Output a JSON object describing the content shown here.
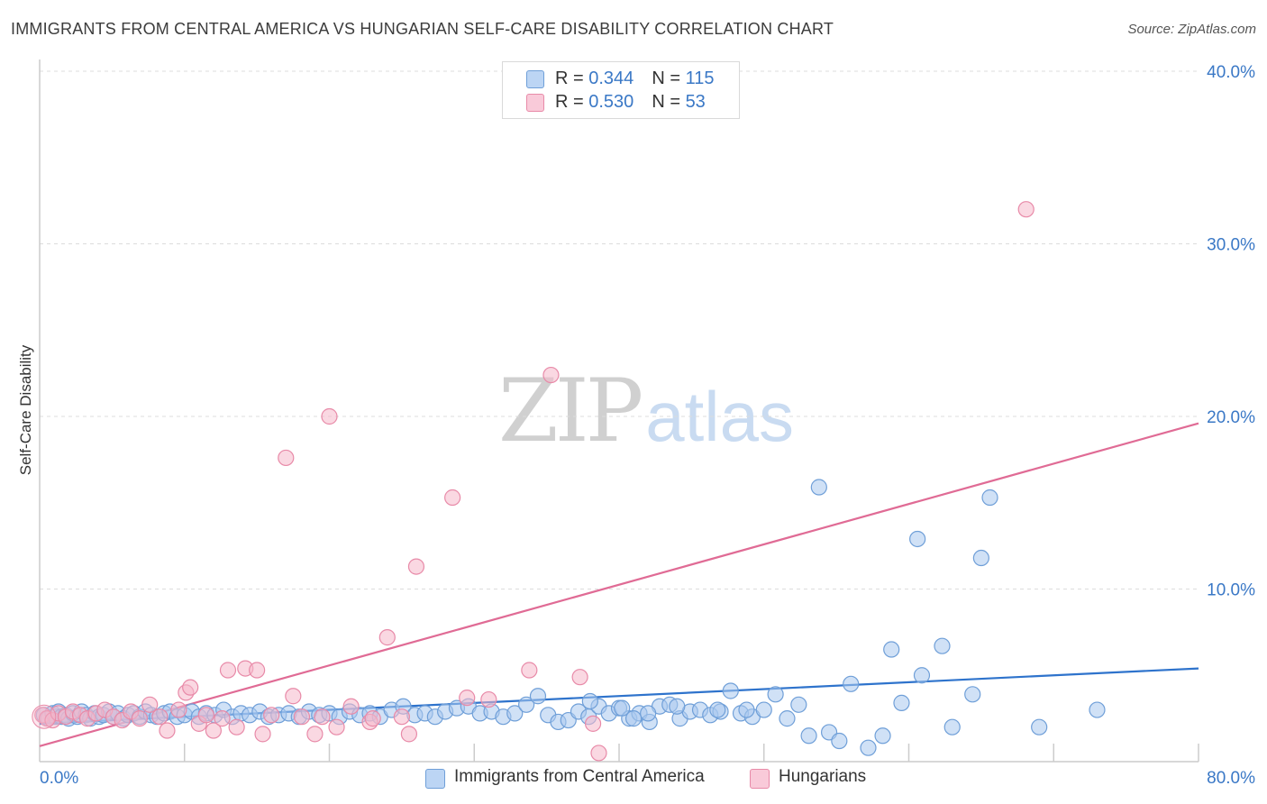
{
  "title": "IMMIGRANTS FROM CENTRAL AMERICA VS HUNGARIAN SELF-CARE DISABILITY CORRELATION CHART",
  "source": "Source: ZipAtlas.com",
  "watermark": {
    "left": "ZIP",
    "right": "atlas"
  },
  "legend": {
    "rows": [
      {
        "r_label": "R = ",
        "r_value": "0.344",
        "n_label": "N = ",
        "n_value": "115"
      },
      {
        "r_label": "R = ",
        "r_value": "0.530",
        "n_label": "N = ",
        "n_value": "53"
      }
    ]
  },
  "bottom_legend": [
    "Immigrants from Central America",
    "Hungarians"
  ],
  "colors": {
    "blue_fill": "#a9c8ee",
    "blue_stroke": "#6f9fd8",
    "blue_line": "#2e73cc",
    "pink_fill": "#f5b8cb",
    "pink_stroke": "#e88aa8",
    "pink_line": "#e06b95",
    "grid": "#dcdcdc",
    "tick_label": "#3a78c6"
  },
  "chart_data": {
    "type": "scatter",
    "title": "IMMIGRANTS FROM CENTRAL AMERICA VS HUNGARIAN SELF-CARE DISABILITY CORRELATION CHART",
    "xlabel": "",
    "ylabel": "Self-Care Disability",
    "xlim": [
      0,
      80
    ],
    "ylim": [
      0,
      42
    ],
    "x_tick_labels": [
      "0.0%",
      "80.0%"
    ],
    "y_ticks": [
      10,
      20,
      30,
      40
    ],
    "y_tick_labels": [
      "10.0%",
      "20.0%",
      "30.0%",
      "40.0%"
    ],
    "grid": true,
    "legend_position": "top-center",
    "series": [
      {
        "name": "Immigrants from Central America",
        "color": "#a9c8ee",
        "trend": {
          "x": [
            0,
            80
          ],
          "y": [
            2.2,
            5.4
          ]
        },
        "points": [
          [
            0.3,
            2.7
          ],
          [
            0.6,
            2.5
          ],
          [
            0.9,
            2.8
          ],
          [
            1.1,
            2.6
          ],
          [
            1.3,
            2.9
          ],
          [
            1.5,
            2.6
          ],
          [
            1.8,
            2.7
          ],
          [
            2.0,
            2.5
          ],
          [
            2.3,
            2.8
          ],
          [
            2.6,
            2.6
          ],
          [
            2.9,
            2.9
          ],
          [
            3.2,
            2.7
          ],
          [
            3.5,
            2.5
          ],
          [
            3.8,
            2.8
          ],
          [
            4.1,
            2.6
          ],
          [
            4.4,
            2.7
          ],
          [
            4.8,
            2.9
          ],
          [
            5.1,
            2.6
          ],
          [
            5.4,
            2.8
          ],
          [
            5.8,
            2.5
          ],
          [
            6.1,
            2.7
          ],
          [
            6.5,
            2.8
          ],
          [
            6.9,
            2.6
          ],
          [
            7.3,
            2.9
          ],
          [
            7.7,
            2.7
          ],
          [
            8.1,
            2.6
          ],
          [
            8.6,
            2.8
          ],
          [
            9.0,
            2.9
          ],
          [
            9.5,
            2.6
          ],
          [
            10.0,
            2.7
          ],
          [
            10.5,
            2.9
          ],
          [
            11.0,
            2.6
          ],
          [
            11.5,
            2.8
          ],
          [
            12.1,
            2.7
          ],
          [
            12.7,
            3.0
          ],
          [
            13.3,
            2.6
          ],
          [
            13.9,
            2.8
          ],
          [
            14.5,
            2.7
          ],
          [
            15.2,
            2.9
          ],
          [
            15.8,
            2.6
          ],
          [
            16.5,
            2.7
          ],
          [
            17.2,
            2.8
          ],
          [
            17.9,
            2.6
          ],
          [
            18.6,
            2.9
          ],
          [
            19.3,
            2.7
          ],
          [
            20.0,
            2.8
          ],
          [
            20.7,
            2.6
          ],
          [
            21.4,
            2.9
          ],
          [
            22.1,
            2.7
          ],
          [
            22.8,
            2.8
          ],
          [
            23.5,
            2.6
          ],
          [
            24.3,
            3.0
          ],
          [
            25.1,
            3.2
          ],
          [
            25.9,
            2.7
          ],
          [
            26.6,
            2.8
          ],
          [
            27.3,
            2.6
          ],
          [
            28.0,
            2.9
          ],
          [
            28.8,
            3.1
          ],
          [
            29.6,
            3.2
          ],
          [
            30.4,
            2.8
          ],
          [
            31.2,
            2.9
          ],
          [
            32.0,
            2.6
          ],
          [
            32.8,
            2.8
          ],
          [
            33.6,
            3.3
          ],
          [
            34.4,
            3.8
          ],
          [
            35.1,
            2.7
          ],
          [
            35.8,
            2.3
          ],
          [
            36.5,
            2.4
          ],
          [
            37.2,
            2.9
          ],
          [
            37.9,
            2.6
          ],
          [
            38.6,
            3.2
          ],
          [
            39.3,
            2.8
          ],
          [
            40.0,
            3.1
          ],
          [
            40.7,
            2.5
          ],
          [
            41.4,
            2.8
          ],
          [
            42.1,
            2.3
          ],
          [
            42.8,
            3.2
          ],
          [
            43.5,
            3.3
          ],
          [
            44.2,
            2.5
          ],
          [
            44.9,
            2.9
          ],
          [
            45.6,
            3.0
          ],
          [
            46.3,
            2.7
          ],
          [
            47.0,
            2.9
          ],
          [
            47.7,
            4.1
          ],
          [
            48.4,
            2.8
          ],
          [
            49.2,
            2.6
          ],
          [
            50.0,
            3.0
          ],
          [
            50.8,
            3.9
          ],
          [
            51.6,
            2.5
          ],
          [
            52.4,
            3.3
          ],
          [
            53.1,
            1.5
          ],
          [
            53.8,
            15.9
          ],
          [
            54.5,
            1.7
          ],
          [
            55.2,
            1.2
          ],
          [
            56.0,
            4.5
          ],
          [
            57.2,
            0.8
          ],
          [
            58.2,
            1.5
          ],
          [
            58.8,
            6.5
          ],
          [
            59.5,
            3.4
          ],
          [
            60.6,
            12.9
          ],
          [
            60.9,
            5.0
          ],
          [
            62.3,
            6.7
          ],
          [
            63.0,
            2.0
          ],
          [
            64.4,
            3.9
          ],
          [
            65.0,
            11.8
          ],
          [
            65.6,
            15.3
          ],
          [
            69.0,
            2.0
          ],
          [
            73.0,
            3.0
          ],
          [
            38.0,
            3.5
          ],
          [
            40.2,
            3.1
          ],
          [
            42.0,
            2.8
          ],
          [
            44.0,
            3.2
          ],
          [
            46.8,
            3.0
          ],
          [
            48.8,
            3.0
          ],
          [
            41.0,
            2.5
          ]
        ]
      },
      {
        "name": "Hungarians",
        "color": "#f5b8cb",
        "trend": {
          "x": [
            0,
            80
          ],
          "y": [
            0.9,
            19.6
          ]
        },
        "points": [
          [
            0.2,
            2.7
          ],
          [
            0.5,
            2.5
          ],
          [
            0.9,
            2.4
          ],
          [
            1.3,
            2.8
          ],
          [
            1.8,
            2.6
          ],
          [
            2.3,
            2.9
          ],
          [
            2.8,
            2.7
          ],
          [
            3.3,
            2.5
          ],
          [
            3.9,
            2.8
          ],
          [
            4.5,
            3.0
          ],
          [
            5.1,
            2.6
          ],
          [
            5.7,
            2.4
          ],
          [
            6.3,
            2.9
          ],
          [
            6.9,
            2.5
          ],
          [
            7.6,
            3.3
          ],
          [
            8.3,
            2.6
          ],
          [
            8.8,
            1.8
          ],
          [
            9.6,
            3.0
          ],
          [
            10.1,
            4.0
          ],
          [
            10.4,
            4.3
          ],
          [
            11.0,
            2.2
          ],
          [
            11.5,
            2.7
          ],
          [
            12.0,
            1.8
          ],
          [
            12.6,
            2.5
          ],
          [
            13.0,
            5.3
          ],
          [
            13.6,
            2.0
          ],
          [
            14.2,
            5.4
          ],
          [
            15.0,
            5.3
          ],
          [
            15.4,
            1.6
          ],
          [
            16.0,
            2.7
          ],
          [
            17.0,
            17.6
          ],
          [
            17.5,
            3.8
          ],
          [
            18.1,
            2.6
          ],
          [
            19.0,
            1.6
          ],
          [
            20.0,
            20.0
          ],
          [
            20.5,
            2.0
          ],
          [
            21.5,
            3.2
          ],
          [
            22.8,
            2.3
          ],
          [
            24.0,
            7.2
          ],
          [
            25.0,
            2.6
          ],
          [
            25.5,
            1.6
          ],
          [
            26.0,
            11.3
          ],
          [
            28.5,
            15.3
          ],
          [
            29.5,
            3.7
          ],
          [
            31.0,
            3.6
          ],
          [
            33.8,
            5.3
          ],
          [
            35.3,
            22.4
          ],
          [
            37.3,
            4.9
          ],
          [
            38.2,
            2.2
          ],
          [
            38.6,
            0.5
          ],
          [
            68.1,
            32.0
          ],
          [
            19.5,
            2.6
          ],
          [
            23.0,
            2.5
          ]
        ]
      }
    ]
  }
}
